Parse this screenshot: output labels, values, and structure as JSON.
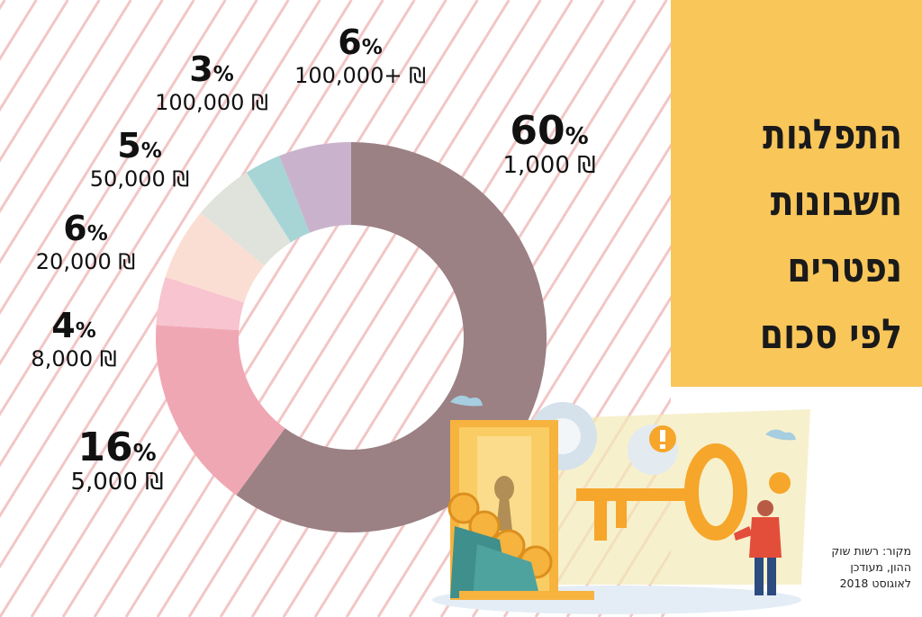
{
  "title": "התפלגות\nחשבונות\nנפטרים\nלפי סכום",
  "source": "מקור: רשות שוק\nההון, מעודכן\nלאוגוסט 2018",
  "colors": {
    "panel": "#f9c65a",
    "stripe": "#f2c6c6"
  },
  "chart_data": {
    "type": "pie",
    "variant": "donut",
    "title": "התפלגות חשבונות נפטרים לפי סכום",
    "slices": [
      {
        "label": "1,000 ₪",
        "pct_label": "60%",
        "value": 60,
        "color": "#9b8084"
      },
      {
        "label": "5,000 ₪",
        "pct_label": "16%",
        "value": 16,
        "color": "#f0a7b4"
      },
      {
        "label": "8,000 ₪",
        "pct_label": "4%",
        "value": 4,
        "color": "#f7c4cf"
      },
      {
        "label": "20,000 ₪",
        "pct_label": "6%",
        "value": 6,
        "color": "#fbded3"
      },
      {
        "label": "50,000 ₪",
        "pct_label": "5%",
        "value": 5,
        "color": "#dfe3dc"
      },
      {
        "label": "100,000 ₪",
        "pct_label": "3%",
        "value": 3,
        "color": "#a7d5d6"
      },
      {
        "label": "100,000+ ₪",
        "pct_label": "6%",
        "value": 6,
        "color": "#c9b3cc"
      }
    ]
  }
}
